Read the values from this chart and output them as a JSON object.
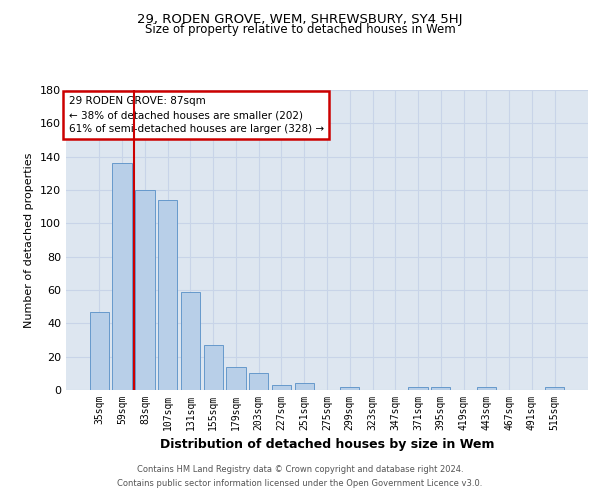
{
  "title": "29, RODEN GROVE, WEM, SHREWSBURY, SY4 5HJ",
  "subtitle": "Size of property relative to detached houses in Wem",
  "xlabel": "Distribution of detached houses by size in Wem",
  "ylabel": "Number of detached properties",
  "categories": [
    "35sqm",
    "59sqm",
    "83sqm",
    "107sqm",
    "131sqm",
    "155sqm",
    "179sqm",
    "203sqm",
    "227sqm",
    "251sqm",
    "275sqm",
    "299sqm",
    "323sqm",
    "347sqm",
    "371sqm",
    "395sqm",
    "419sqm",
    "443sqm",
    "467sqm",
    "491sqm",
    "515sqm"
  ],
  "values": [
    47,
    136,
    120,
    114,
    59,
    27,
    14,
    10,
    3,
    4,
    0,
    2,
    0,
    0,
    2,
    2,
    0,
    2,
    0,
    0,
    2
  ],
  "bar_color": "#b8cfe8",
  "bar_edge_color": "#6699cc",
  "vline_color": "#cc0000",
  "annotation_title": "29 RODEN GROVE: 87sqm",
  "annotation_line1": "← 38% of detached houses are smaller (202)",
  "annotation_line2": "61% of semi-detached houses are larger (328) →",
  "annotation_box_color": "#ffffff",
  "annotation_box_edge_color": "#cc0000",
  "ylim": [
    0,
    180
  ],
  "yticks": [
    0,
    20,
    40,
    60,
    80,
    100,
    120,
    140,
    160,
    180
  ],
  "grid_color": "#c8d4e8",
  "background_color": "#dde6f0",
  "footer_line1": "Contains HM Land Registry data © Crown copyright and database right 2024.",
  "footer_line2": "Contains public sector information licensed under the Open Government Licence v3.0."
}
